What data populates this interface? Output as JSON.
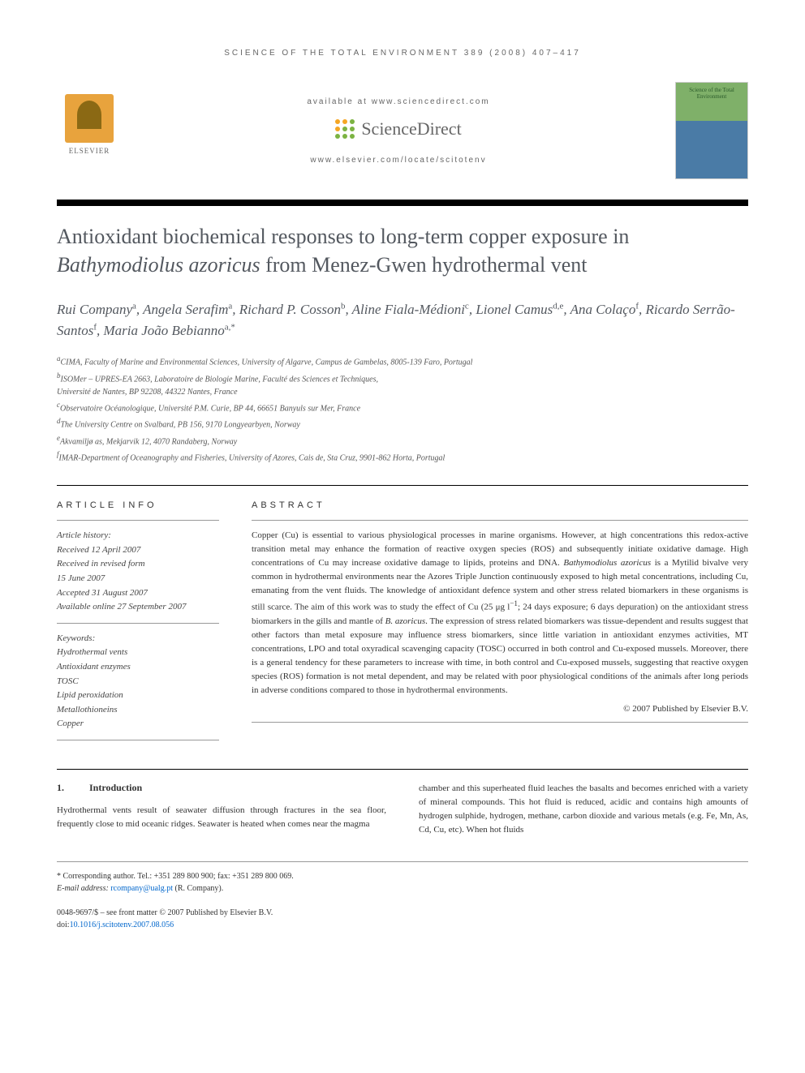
{
  "header": {
    "citation": "SCIENCE OF THE TOTAL ENVIRONMENT 389 (2008) 407–417",
    "available_at": "available at www.sciencedirect.com",
    "sd_brand": "ScienceDirect",
    "locate": "www.elsevier.com/locate/scitotenv",
    "elsevier": "ELSEVIER",
    "journal_cover_title": "Science of the Total Environment"
  },
  "sd_dot_colors": [
    "#f5a623",
    "#f5a623",
    "#7cb342",
    "#f5a623",
    "#7cb342",
    "#7cb342",
    "#7cb342",
    "#7cb342",
    "#7cb342"
  ],
  "title_parts": {
    "pre": "Antioxidant biochemical responses to long-term copper exposure in ",
    "italic": "Bathymodiolus azoricus",
    "post": " from Menez-Gwen hydrothermal vent"
  },
  "authors_html": "Rui Company<sup>a</sup>, Angela Serafim<sup>a</sup>, Richard P. Cosson<sup>b</sup>, Aline Fiala-Médioni<sup>c</sup>, Lionel Camus<sup>d,e</sup>, Ana Colaço<sup>f</sup>, Ricardo Serrão-Santos<sup>f</sup>, Maria João Bebianno<sup>a,*</sup>",
  "affiliations": [
    "<sup>a</sup>CIMA, Faculty of Marine and Environmental Sciences, University of Algarve, Campus de Gambelas, 8005-139 Faro, Portugal",
    "<sup>b</sup>ISOMer – UPRES-EA 2663, Laboratoire de Biologie Marine, Faculté des Sciences et Techniques,",
    "Université de Nantes, BP 92208, 44322 Nantes, France",
    "<sup>c</sup>Observatoire Océanologique, Université P.M. Curie, BP 44, 66651 Banyuls sur Mer, France",
    "<sup>d</sup>The University Centre on Svalbard, PB 156, 9170 Longyearbyen, Norway",
    "<sup>e</sup>Akvamiljø as, Mekjarvik 12, 4070 Randaberg, Norway",
    "<sup>f</sup>IMAR-Department of Oceanography and Fisheries, University of Azores, Cais de, Sta Cruz, 9901-862 Horta, Portugal"
  ],
  "article_info": {
    "label": "ARTICLE INFO",
    "history_label": "Article history:",
    "history": [
      "Received 12 April 2007",
      "Received in revised form",
      "15 June 2007",
      "Accepted 31 August 2007",
      "Available online 27 September 2007"
    ],
    "keywords_label": "Keywords:",
    "keywords": [
      "Hydrothermal vents",
      "Antioxidant enzymes",
      "TOSC",
      "Lipid peroxidation",
      "Metallothioneins",
      "Copper"
    ]
  },
  "abstract": {
    "label": "ABSTRACT",
    "text": "Copper (Cu) is essential to various physiological processes in marine organisms. However, at high concentrations this redox-active transition metal may enhance the formation of reactive oxygen species (ROS) and subsequently initiate oxidative damage. High concentrations of Cu may increase oxidative damage to lipids, proteins and DNA. <em>Bathymodiolus azoricus</em> is a Mytilid bivalve very common in hydrothermal environments near the Azores Triple Junction continuously exposed to high metal concentrations, including Cu, emanating from the vent fluids. The knowledge of antioxidant defence system and other stress related biomarkers in these organisms is still scarce. The aim of this work was to study the effect of Cu (25 μg l<sup>−1</sup>; 24 days exposure; 6 days depuration) on the antioxidant stress biomarkers in the gills and mantle of <em>B. azoricus</em>. The expression of stress related biomarkers was tissue-dependent and results suggest that other factors than metal exposure may influence stress biomarkers, since little variation in antioxidant enzymes activities, MT concentrations, LPO and total oxyradical scavenging capacity (TOSC) occurred in both control and Cu-exposed mussels. Moreover, there is a general tendency for these parameters to increase with time, in both control and Cu-exposed mussels, suggesting that reactive oxygen species (ROS) formation is not metal dependent, and may be related with poor physiological conditions of the animals after long periods in adverse conditions compared to those in hydrothermal environments.",
    "copyright": "© 2007 Published by Elsevier B.V."
  },
  "body": {
    "section_num": "1.",
    "section_title": "Introduction",
    "col1": "Hydrothermal vents result of seawater diffusion through fractures in the sea floor, frequently close to mid oceanic ridges. Seawater is heated when comes near the magma",
    "col2": "chamber and this superheated fluid leaches the basalts and becomes enriched with a variety of mineral compounds. This hot fluid is reduced, acidic and contains high amounts of hydrogen sulphide, hydrogen, methane, carbon dioxide and various metals (e.g. Fe, Mn, As, Cd, Cu, etc). When hot fluids"
  },
  "footer": {
    "corr_label": "* Corresponding author.",
    "corr_contact": " Tel.: +351 289 800 900; fax: +351 289 800 069.",
    "email_label": "E-mail address: ",
    "email": "rcompany@ualg.pt",
    "email_author": " (R. Company).",
    "issn": "0048-9697/$ – see front matter © 2007 Published by Elsevier B.V.",
    "doi_label": "doi:",
    "doi": "10.1016/j.scitotenv.2007.08.056"
  }
}
